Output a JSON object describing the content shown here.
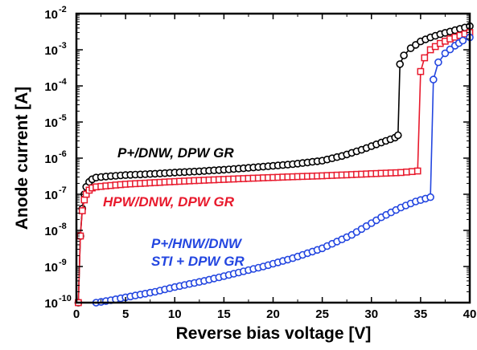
{
  "chart_data": {
    "type": "scatter",
    "xlabel": "Reverse bias voltage [V]",
    "ylabel": "Anode current [A]",
    "x_scale": "linear",
    "y_scale": "log",
    "xlim": [
      0,
      40
    ],
    "ylim": [
      1e-10,
      0.01
    ],
    "x_ticks": [
      "0",
      "5",
      "10",
      "15",
      "20",
      "25",
      "30",
      "35",
      "40"
    ],
    "y_ticks": [
      {
        "base": "10",
        "exp": "-10"
      },
      {
        "base": "10",
        "exp": "-9"
      },
      {
        "base": "10",
        "exp": "-8"
      },
      {
        "base": "10",
        "exp": "-7"
      },
      {
        "base": "10",
        "exp": "-6"
      },
      {
        "base": "10",
        "exp": "-5"
      },
      {
        "base": "10",
        "exp": "-4"
      },
      {
        "base": "10",
        "exp": "-3"
      },
      {
        "base": "10",
        "exp": "-2"
      }
    ],
    "series": [
      {
        "label": "P+/DNW, DPW GR",
        "color": "#000000",
        "marker": "circle",
        "points": [
          [
            0.2,
            1e-10
          ],
          [
            0.4,
            7e-09
          ],
          [
            0.6,
            4e-08
          ],
          [
            0.8,
            1e-07
          ],
          [
            1.0,
            1.6e-07
          ],
          [
            1.3,
            2.2e-07
          ],
          [
            1.6,
            2.6e-07
          ],
          [
            2.0,
            2.9e-07
          ],
          [
            3,
            3.1e-07
          ],
          [
            5,
            3.4e-07
          ],
          [
            8,
            3.7e-07
          ],
          [
            10,
            4e-07
          ],
          [
            13,
            4.4e-07
          ],
          [
            16,
            5e-07
          ],
          [
            19,
            5.8e-07
          ],
          [
            22,
            6.8e-07
          ],
          [
            25,
            8.5e-07
          ],
          [
            27,
            1.15e-06
          ],
          [
            29,
            1.7e-06
          ],
          [
            31,
            2.7e-06
          ],
          [
            32.4,
            3.7e-06
          ],
          [
            32.7,
            4.3e-06
          ],
          [
            32.9,
            0.0004
          ],
          [
            33.3,
            0.0007
          ],
          [
            34,
            0.0011
          ],
          [
            35,
            0.0017
          ],
          [
            36,
            0.0022
          ],
          [
            37,
            0.0027
          ],
          [
            38,
            0.0032
          ],
          [
            39,
            0.0038
          ],
          [
            40,
            0.0045
          ]
        ]
      },
      {
        "label": "HPW/DNW, DPW GR",
        "color": "#e8192c",
        "marker": "square",
        "points": [
          [
            0.2,
            1e-10
          ],
          [
            0.4,
            7e-09
          ],
          [
            0.6,
            3.5e-08
          ],
          [
            0.8,
            7e-08
          ],
          [
            1.0,
            1e-07
          ],
          [
            1.3,
            1.3e-07
          ],
          [
            1.6,
            1.5e-07
          ],
          [
            2.0,
            1.6e-07
          ],
          [
            3,
            1.7e-07
          ],
          [
            5,
            1.9e-07
          ],
          [
            8,
            2.1e-07
          ],
          [
            10,
            2.25e-07
          ],
          [
            13,
            2.45e-07
          ],
          [
            16,
            2.65e-07
          ],
          [
            19,
            2.85e-07
          ],
          [
            22,
            3.05e-07
          ],
          [
            25,
            3.25e-07
          ],
          [
            28,
            3.5e-07
          ],
          [
            31,
            3.8e-07
          ],
          [
            33,
            4e-07
          ],
          [
            34.7,
            4.4e-07
          ],
          [
            35.0,
            0.00025
          ],
          [
            35.4,
            0.0006
          ],
          [
            36,
            0.001
          ],
          [
            37,
            0.0015
          ],
          [
            38,
            0.002
          ],
          [
            39,
            0.0025
          ],
          [
            40,
            0.003
          ]
        ]
      },
      {
        "label": "P+/HNW/DNW\nSTI + DPW GR",
        "color": "#2346e0",
        "marker": "circle",
        "points": [
          [
            2.0,
            1e-10
          ],
          [
            3,
            1.1e-10
          ],
          [
            5,
            1.4e-10
          ],
          [
            8,
            2e-10
          ],
          [
            10,
            2.7e-10
          ],
          [
            13,
            4e-10
          ],
          [
            16,
            6.3e-10
          ],
          [
            19,
            1e-09
          ],
          [
            22,
            1.7e-09
          ],
          [
            25,
            3.2e-09
          ],
          [
            28,
            7.5e-09
          ],
          [
            31,
            2.3e-08
          ],
          [
            33,
            4.3e-08
          ],
          [
            34.5,
            6.3e-08
          ],
          [
            36.0,
            8.3e-08
          ],
          [
            36.3,
            0.00015
          ],
          [
            36.8,
            0.00045
          ],
          [
            37.5,
            0.0008
          ],
          [
            38.5,
            0.0013
          ],
          [
            39.3,
            0.0018
          ],
          [
            40,
            0.0022
          ]
        ]
      }
    ],
    "annotations": [
      {
        "text": "P+/DNW, DPW GR",
        "color": "#000000"
      },
      {
        "text": "HPW/DNW, DPW GR",
        "color": "#e8192c"
      },
      {
        "text": "P+/HNW/DNW",
        "color": "#2346e0"
      },
      {
        "text": "STI + DPW GR",
        "color": "#2346e0"
      }
    ],
    "grid": false
  }
}
